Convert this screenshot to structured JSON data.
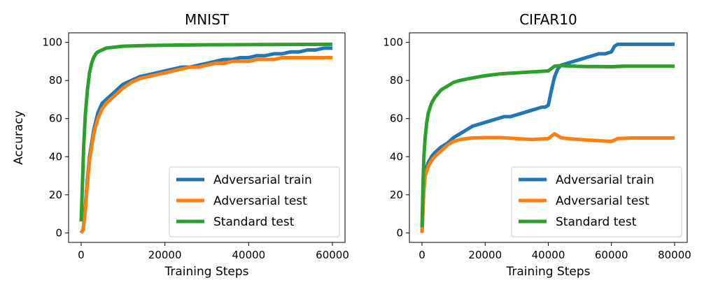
{
  "chart_data": [
    {
      "type": "line",
      "title": "MNIST",
      "xlabel": "Training Steps",
      "ylabel": "Accuracy",
      "xlim": [
        -3000,
        63000
      ],
      "ylim": [
        -5,
        105
      ],
      "xticks": [
        0,
        20000,
        40000,
        60000
      ],
      "yticks": [
        0,
        20,
        40,
        60,
        80,
        100
      ],
      "grid": false,
      "legend": "lower-right",
      "series": [
        {
          "name": "Adversarial train",
          "color": "#1f77b4",
          "x": [
            0,
            500,
            1000,
            1500,
            2000,
            3000,
            4000,
            5000,
            6000,
            7000,
            8000,
            9000,
            10000,
            12000,
            14000,
            16000,
            18000,
            20000,
            22000,
            24000,
            26000,
            28000,
            30000,
            32000,
            34000,
            36000,
            38000,
            40000,
            42000,
            44000,
            46000,
            48000,
            50000,
            52000,
            54000,
            56000,
            58000,
            60000
          ],
          "y": [
            0,
            2,
            14,
            28,
            40,
            54,
            63,
            68,
            70,
            72,
            74,
            76,
            78,
            80,
            82,
            83,
            84,
            85,
            86,
            87,
            87,
            88,
            89,
            90,
            91,
            91,
            92,
            92,
            93,
            93,
            94,
            94,
            95,
            95,
            96,
            96,
            97,
            97
          ]
        },
        {
          "name": "Adversarial test",
          "color": "#ff7f0e",
          "x": [
            0,
            500,
            1000,
            1500,
            2000,
            3000,
            4000,
            5000,
            6000,
            7000,
            8000,
            9000,
            10000,
            12000,
            14000,
            16000,
            18000,
            20000,
            22000,
            24000,
            26000,
            28000,
            30000,
            32000,
            34000,
            36000,
            38000,
            40000,
            42000,
            44000,
            46000,
            48000,
            50000,
            52000,
            54000,
            56000,
            58000,
            60000
          ],
          "y": [
            0,
            2,
            12,
            26,
            38,
            52,
            60,
            65,
            68,
            70,
            72,
            74,
            76,
            79,
            81,
            82,
            83,
            84,
            85,
            86,
            87,
            87,
            88,
            89,
            89,
            90,
            90,
            90,
            91,
            91,
            91,
            92,
            92,
            92,
            92,
            92,
            92,
            92
          ]
        },
        {
          "name": "Standard test",
          "color": "#2ca02c",
          "x": [
            0,
            300,
            600,
            1000,
            1500,
            2000,
            2500,
            3000,
            3500,
            4000,
            5000,
            6000,
            8000,
            10000,
            15000,
            20000,
            30000,
            40000,
            50000,
            60000
          ],
          "y": [
            6,
            25,
            45,
            62,
            75,
            84,
            89,
            92,
            94,
            95,
            96,
            97,
            97.5,
            98,
            98.3,
            98.5,
            98.7,
            98.8,
            98.9,
            99
          ]
        }
      ]
    },
    {
      "type": "line",
      "title": "CIFAR10",
      "xlabel": "Training Steps",
      "ylabel": "",
      "xlim": [
        -4000,
        84000
      ],
      "ylim": [
        -5,
        105
      ],
      "xticks": [
        0,
        20000,
        40000,
        60000,
        80000
      ],
      "yticks": [
        0,
        20,
        40,
        60,
        80,
        100
      ],
      "grid": false,
      "legend": "lower-right",
      "series": [
        {
          "name": "Adversarial train",
          "color": "#1f77b4",
          "x": [
            0,
            500,
            1000,
            2000,
            3000,
            4000,
            6000,
            8000,
            10000,
            12000,
            14000,
            16000,
            18000,
            20000,
            22000,
            24000,
            26000,
            28000,
            30000,
            32000,
            34000,
            36000,
            38000,
            39000,
            40000,
            41000,
            42000,
            43000,
            44000,
            46000,
            48000,
            50000,
            52000,
            54000,
            56000,
            58000,
            60000,
            61000,
            62000,
            64000,
            66000,
            68000,
            70000,
            72000,
            74000,
            76000,
            78000,
            80000
          ],
          "y": [
            0,
            20,
            32,
            37,
            40,
            42,
            45,
            47,
            50,
            52,
            54,
            56,
            57,
            58,
            59,
            60,
            61,
            61,
            62,
            63,
            64,
            65,
            66,
            66,
            67,
            75,
            82,
            86,
            88,
            89,
            90,
            91,
            92,
            93,
            94,
            94,
            95,
            98,
            99,
            99,
            99,
            99,
            99,
            99,
            99,
            99,
            99,
            99
          ]
        },
        {
          "name": "Adversarial test",
          "color": "#ff7f0e",
          "x": [
            0,
            500,
            1000,
            2000,
            3000,
            4000,
            6000,
            8000,
            10000,
            12000,
            14000,
            16000,
            20000,
            25000,
            30000,
            35000,
            40000,
            42000,
            44000,
            46000,
            50000,
            55000,
            60000,
            62000,
            66000,
            70000,
            75000,
            80000
          ],
          "y": [
            0,
            20,
            30,
            35,
            38,
            40,
            43,
            46,
            48,
            49,
            49.5,
            49.8,
            50,
            50,
            49.5,
            49,
            49.5,
            52,
            50,
            49.5,
            49,
            48.5,
            48,
            49.5,
            49.8,
            49.8,
            49.8,
            49.8
          ]
        },
        {
          "name": "Standard test",
          "color": "#2ca02c",
          "x": [
            0,
            300,
            600,
            1000,
            1500,
            2000,
            3000,
            4000,
            5000,
            6000,
            8000,
            10000,
            12000,
            15000,
            20000,
            25000,
            30000,
            35000,
            40000,
            42000,
            44000,
            48000,
            52000,
            56000,
            60000,
            64000,
            68000,
            72000,
            76000,
            80000
          ],
          "y": [
            3,
            25,
            40,
            50,
            58,
            63,
            68,
            71,
            73,
            75,
            77,
            79,
            80,
            81,
            82.5,
            83.5,
            84,
            84.5,
            85,
            87.5,
            87.8,
            87.5,
            87.3,
            87.3,
            87.2,
            87.5,
            87.5,
            87.5,
            87.5,
            87.5
          ]
        }
      ]
    }
  ]
}
